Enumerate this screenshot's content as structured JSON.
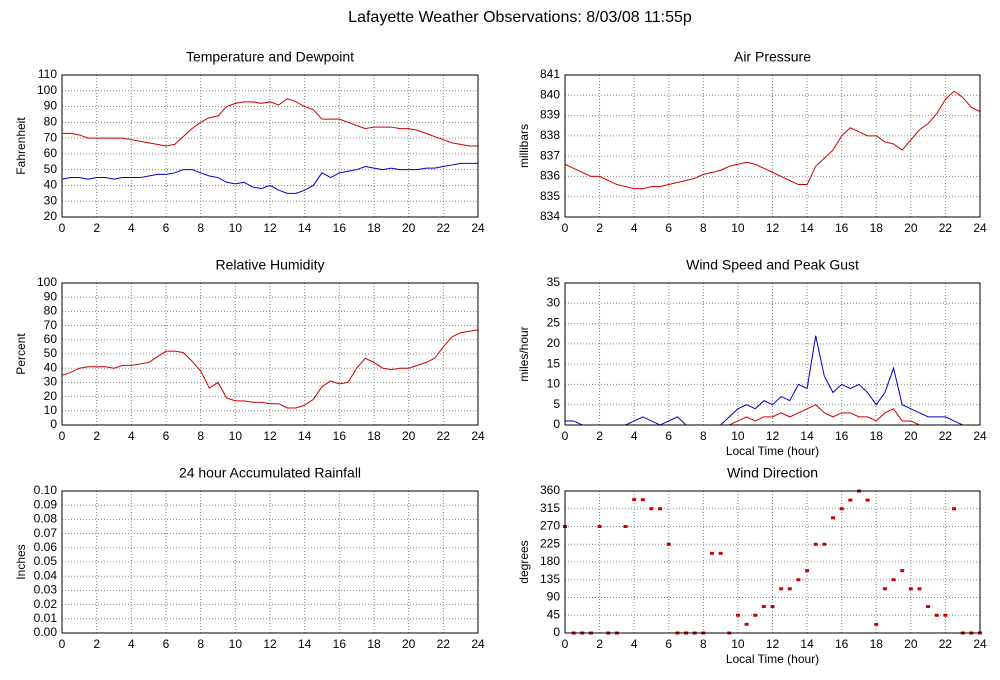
{
  "title": "Lafayette Weather Observations: 8/03/08 11:55p",
  "chart_data": [
    {
      "type": "line",
      "title": "Temperature and Dewpoint",
      "ylabel": "Fahrenheit",
      "x": [
        0,
        0.5,
        1,
        1.5,
        2,
        2.5,
        3,
        3.5,
        4,
        4.5,
        5,
        5.5,
        6,
        6.5,
        7,
        7.5,
        8,
        8.5,
        9,
        9.5,
        10,
        10.5,
        11,
        11.5,
        12,
        12.5,
        13,
        13.5,
        14,
        14.5,
        15,
        15.5,
        16,
        16.5,
        17,
        17.5,
        18,
        18.5,
        19,
        19.5,
        20,
        20.5,
        21,
        21.5,
        22,
        22.5,
        23,
        23.5,
        24
      ],
      "series": [
        {
          "color": "#cc0000",
          "values": [
            73,
            73,
            72,
            70,
            70,
            70,
            70,
            70,
            69,
            68,
            67,
            66,
            65,
            66,
            71,
            76,
            80,
            83,
            84,
            90,
            92,
            93,
            93,
            92,
            93,
            91,
            95,
            93,
            90,
            88,
            82,
            82,
            82,
            80,
            78,
            76,
            77,
            77,
            77,
            76,
            76,
            75,
            73,
            71,
            69,
            67,
            66,
            65,
            65
          ]
        },
        {
          "color": "#0000cc",
          "values": [
            44,
            45,
            45,
            44,
            45,
            45,
            44,
            45,
            45,
            45,
            46,
            47,
            47,
            48,
            50,
            50,
            48,
            46,
            45,
            42,
            41,
            42,
            39,
            38,
            40,
            37,
            35,
            35,
            37,
            40,
            48,
            45,
            48,
            49,
            50,
            52,
            51,
            50,
            51,
            50,
            50,
            50,
            51,
            51,
            52,
            53,
            54,
            54,
            54
          ]
        }
      ],
      "xlim": [
        0,
        24
      ],
      "xticks": [
        0,
        2,
        4,
        6,
        8,
        10,
        12,
        14,
        16,
        18,
        20,
        22,
        24
      ],
      "ylim": [
        20,
        110
      ],
      "yticks": [
        20,
        30,
        40,
        50,
        60,
        70,
        80,
        90,
        100,
        110
      ],
      "grid": true
    },
    {
      "type": "line",
      "title": "Air Pressure",
      "ylabel": "millibars",
      "x": [
        0,
        0.5,
        1,
        1.5,
        2,
        2.5,
        3,
        3.5,
        4,
        4.5,
        5,
        5.5,
        6,
        6.5,
        7,
        7.5,
        8,
        8.5,
        9,
        9.5,
        10,
        10.5,
        11,
        11.5,
        12,
        12.5,
        13,
        13.5,
        14,
        14.5,
        15,
        15.5,
        16,
        16.5,
        17,
        17.5,
        18,
        18.5,
        19,
        19.5,
        20,
        20.5,
        21,
        21.5,
        22,
        22.5,
        23,
        23.5,
        24
      ],
      "series": [
        {
          "color": "#cc0000",
          "values": [
            836.6,
            836.4,
            836.2,
            836.0,
            836.0,
            835.8,
            835.6,
            835.5,
            835.4,
            835.4,
            835.5,
            835.5,
            835.6,
            835.7,
            835.8,
            835.9,
            836.1,
            836.2,
            836.3,
            836.5,
            836.6,
            836.7,
            836.6,
            836.4,
            836.2,
            836.0,
            835.8,
            835.6,
            835.6,
            836.5,
            836.9,
            837.3,
            838.0,
            838.4,
            838.2,
            838.0,
            838.0,
            837.7,
            837.6,
            837.3,
            837.8,
            838.3,
            838.6,
            839.1,
            839.8,
            840.2,
            839.9,
            839.4,
            839.2
          ]
        }
      ],
      "xlim": [
        0,
        24
      ],
      "xticks": [
        0,
        2,
        4,
        6,
        8,
        10,
        12,
        14,
        16,
        18,
        20,
        22,
        24
      ],
      "ylim": [
        834,
        841
      ],
      "yticks": [
        834,
        835,
        836,
        837,
        838,
        839,
        840,
        841
      ],
      "grid": true
    },
    {
      "type": "line",
      "title": "Relative Humidity",
      "ylabel": "Percent",
      "x": [
        0,
        0.5,
        1,
        1.5,
        2,
        2.5,
        3,
        3.5,
        4,
        4.5,
        5,
        5.5,
        6,
        6.5,
        7,
        7.5,
        8,
        8.5,
        9,
        9.5,
        10,
        10.5,
        11,
        11.5,
        12,
        12.5,
        13,
        13.5,
        14,
        14.5,
        15,
        15.5,
        16,
        16.5,
        17,
        17.5,
        18,
        18.5,
        19,
        19.5,
        20,
        20.5,
        21,
        21.5,
        22,
        22.5,
        23,
        23.5,
        24
      ],
      "series": [
        {
          "color": "#cc0000",
          "values": [
            35,
            37,
            40,
            41,
            41,
            41,
            40,
            42,
            42,
            43,
            44,
            48,
            52,
            52,
            51,
            45,
            38,
            26,
            30,
            19,
            17,
            17,
            16,
            16,
            15,
            15,
            12,
            12,
            14,
            18,
            27,
            31,
            29,
            30,
            40,
            47,
            44,
            40,
            39,
            40,
            40,
            42,
            44,
            47,
            55,
            62,
            65,
            66,
            67
          ]
        }
      ],
      "xlim": [
        0,
        24
      ],
      "xticks": [
        0,
        2,
        4,
        6,
        8,
        10,
        12,
        14,
        16,
        18,
        20,
        22,
        24
      ],
      "ylim": [
        0,
        100
      ],
      "yticks": [
        0,
        10,
        20,
        30,
        40,
        50,
        60,
        70,
        80,
        90,
        100
      ],
      "grid": true
    },
    {
      "type": "line",
      "title": "Wind Speed and Peak Gust",
      "ylabel": "miles/hour",
      "xlabel": "Local Time (hour)",
      "x": [
        0,
        0.5,
        1,
        1.5,
        2,
        2.5,
        3,
        3.5,
        4,
        4.5,
        5,
        5.5,
        6,
        6.5,
        7,
        7.5,
        8,
        8.5,
        9,
        9.5,
        10,
        10.5,
        11,
        11.5,
        12,
        12.5,
        13,
        13.5,
        14,
        14.5,
        15,
        15.5,
        16,
        16.5,
        17,
        17.5,
        18,
        18.5,
        19,
        19.5,
        20,
        20.5,
        21,
        21.5,
        22,
        22.5,
        23,
        23.5,
        24
      ],
      "series": [
        {
          "color": "#0000cc",
          "values": [
            1,
            1,
            0,
            0,
            0,
            0,
            0,
            0,
            1,
            2,
            1,
            0,
            1,
            2,
            0,
            0,
            0,
            0,
            0,
            2,
            4,
            5,
            4,
            6,
            5,
            7,
            6,
            10,
            9,
            22,
            12,
            8,
            10,
            9,
            10,
            8,
            5,
            8,
            14,
            5,
            4,
            3,
            2,
            2,
            2,
            1,
            0,
            0,
            0
          ]
        },
        {
          "color": "#cc0000",
          "values": [
            0,
            0,
            0,
            0,
            0,
            0,
            0,
            0,
            0,
            0,
            0,
            0,
            0,
            0,
            0,
            0,
            0,
            0,
            0,
            0,
            1,
            2,
            1,
            2,
            2,
            3,
            2,
            3,
            4,
            5,
            3,
            2,
            3,
            3,
            2,
            2,
            1,
            3,
            4,
            1,
            1,
            0,
            0,
            0,
            0,
            0,
            0,
            0,
            0
          ]
        }
      ],
      "xlim": [
        0,
        24
      ],
      "xticks": [
        0,
        2,
        4,
        6,
        8,
        10,
        12,
        14,
        16,
        18,
        20,
        22,
        24
      ],
      "ylim": [
        0,
        35
      ],
      "yticks": [
        0,
        5,
        10,
        15,
        20,
        25,
        30,
        35
      ],
      "grid": true
    },
    {
      "type": "line",
      "title": "24 hour Accumulated Rainfall",
      "ylabel": "Inches",
      "x": [
        0,
        24
      ],
      "series": [
        {
          "color": "#cc0000",
          "values": [
            0,
            0
          ]
        }
      ],
      "xlim": [
        0,
        24
      ],
      "xticks": [
        0,
        2,
        4,
        6,
        8,
        10,
        12,
        14,
        16,
        18,
        20,
        22,
        24
      ],
      "ylim": [
        0,
        0.1
      ],
      "yticks": [
        {
          "value": 0,
          "label": "0.00"
        },
        {
          "value": 0.01,
          "label": "0.01"
        },
        {
          "value": 0.02,
          "label": "0.02"
        },
        {
          "value": 0.03,
          "label": "0.03"
        },
        {
          "value": 0.04,
          "label": "0.04"
        },
        {
          "value": 0.05,
          "label": "0.05"
        },
        {
          "value": 0.06,
          "label": "0.06"
        },
        {
          "value": 0.07,
          "label": "0.07"
        },
        {
          "value": 0.08,
          "label": "0.08"
        },
        {
          "value": 0.09,
          "label": "0.09"
        },
        {
          "value": 0.1,
          "label": "0.10"
        }
      ],
      "grid": true
    },
    {
      "type": "scatter",
      "title": "Wind Direction",
      "ylabel": "degrees",
      "xlabel": "Local Time (hour)",
      "x": [
        0,
        0.5,
        1,
        1.5,
        2,
        2.5,
        3,
        3.5,
        4,
        4.5,
        5,
        5.5,
        6,
        6.5,
        7,
        7.5,
        8,
        8.5,
        9,
        9.5,
        10,
        10.5,
        11,
        11.5,
        12,
        12.5,
        13,
        13.5,
        14,
        14.5,
        15,
        15.5,
        16,
        16.5,
        17,
        17.5,
        18,
        18.5,
        19,
        19.5,
        20,
        20.5,
        21,
        21.5,
        22,
        22.5,
        23,
        23.5,
        24
      ],
      "series": [
        {
          "color": "#cc0000",
          "values": [
            270,
            0,
            0,
            0,
            270,
            0,
            0,
            270,
            338,
            338,
            315,
            315,
            225,
            0,
            0,
            0,
            0,
            202,
            202,
            0,
            45,
            22,
            45,
            67,
            67,
            112,
            112,
            135,
            158,
            225,
            225,
            292,
            315,
            337,
            360,
            337,
            22,
            112,
            135,
            158,
            112,
            112,
            67,
            45,
            45,
            315,
            0,
            0,
            0
          ]
        }
      ],
      "xlim": [
        0,
        24
      ],
      "xticks": [
        0,
        2,
        4,
        6,
        8,
        10,
        12,
        14,
        16,
        18,
        20,
        22,
        24
      ],
      "ylim": [
        0,
        360
      ],
      "yticks": [
        0,
        45,
        90,
        135,
        180,
        225,
        270,
        315,
        360
      ],
      "grid": true
    }
  ]
}
